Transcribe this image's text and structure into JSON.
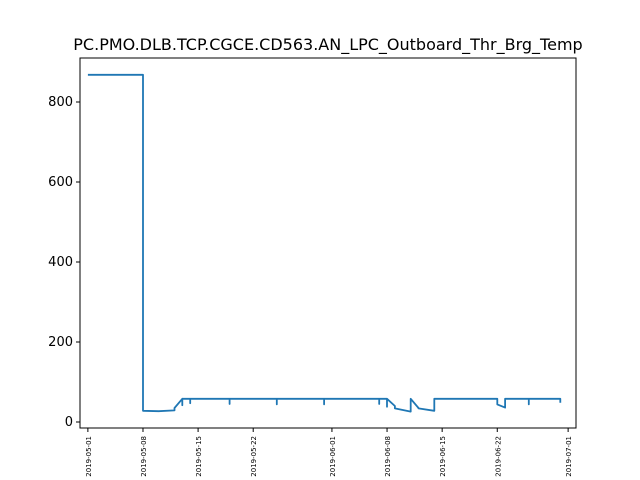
{
  "chart_data": {
    "type": "line",
    "title": "PC.PMO.DLB.TCP.CGCE.CD563.AN_LPC_Outboard_Thr_Brg_Temp",
    "xlabel": "",
    "ylabel": "",
    "grid": false,
    "legend": "none",
    "line_color": "#1f77b4",
    "xlim": [
      "2019-04-30",
      "2019-07-02"
    ],
    "ylim": [
      -15,
      910
    ],
    "x_ticks": [
      "2019-05-01",
      "2019-05-08",
      "2019-05-15",
      "2019-05-22",
      "2019-06-01",
      "2019-06-08",
      "2019-06-15",
      "2019-06-22",
      "2019-07-01"
    ],
    "y_ticks": [
      0,
      200,
      400,
      600,
      800
    ],
    "series": [
      {
        "x": [
          "2019-05-01",
          "2019-05-08",
          "2019-05-08",
          "2019-05-10",
          "2019-05-12",
          "2019-05-12",
          "2019-05-13",
          "2019-05-13",
          "2019-05-13",
          "2019-05-14",
          "2019-05-14",
          "2019-05-14",
          "2019-05-19",
          "2019-05-19",
          "2019-05-19",
          "2019-05-25",
          "2019-05-25",
          "2019-05-25",
          "2019-05-31",
          "2019-05-31",
          "2019-05-31",
          "2019-06-07",
          "2019-06-07",
          "2019-06-07",
          "2019-06-08",
          "2019-06-08",
          "2019-06-08",
          "2019-06-09",
          "2019-06-09",
          "2019-06-11",
          "2019-06-11",
          "2019-06-11",
          "2019-06-12",
          "2019-06-12",
          "2019-06-14",
          "2019-06-14",
          "2019-06-22",
          "2019-06-22",
          "2019-06-23",
          "2019-06-23",
          "2019-06-26",
          "2019-06-26",
          "2019-06-26",
          "2019-06-30",
          "2019-06-30"
        ],
        "y": [
          868,
          868,
          28,
          27,
          29,
          35,
          58,
          42,
          58,
          58,
          47,
          58,
          58,
          45,
          58,
          58,
          44,
          58,
          58,
          44,
          58,
          58,
          45,
          58,
          58,
          38,
          58,
          40,
          34,
          26,
          55,
          58,
          35,
          34,
          28,
          58,
          58,
          44,
          36,
          58,
          58,
          44,
          58,
          58,
          48
        ]
      }
    ]
  }
}
